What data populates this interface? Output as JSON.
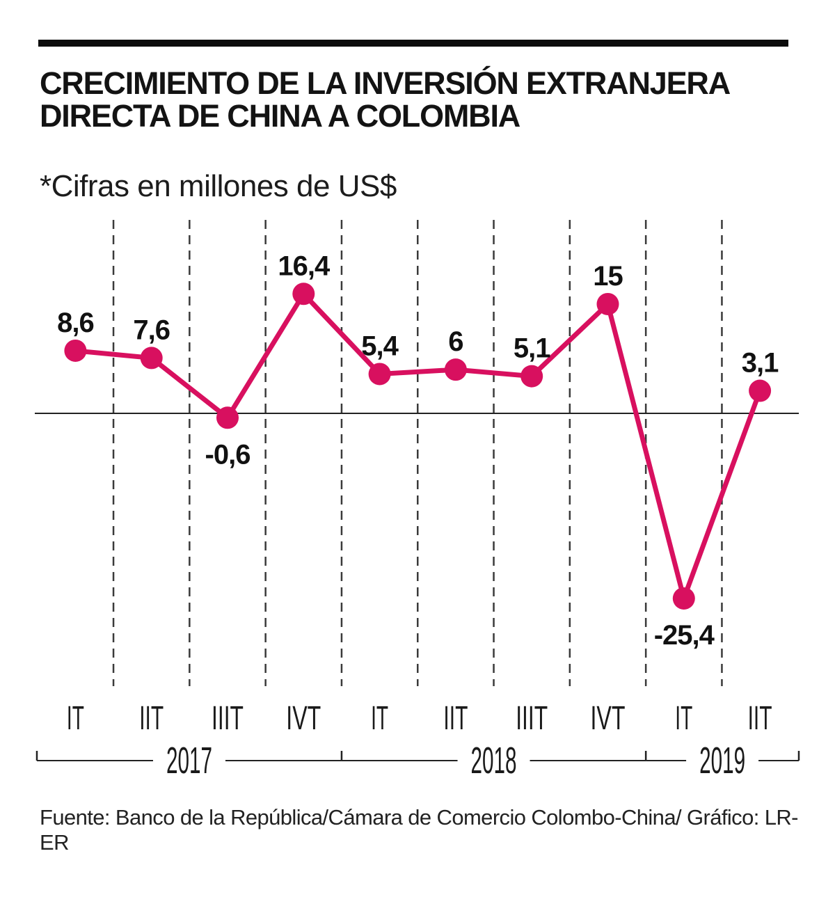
{
  "header": {
    "title_line1": "CRECIMIENTO DE LA INVERSIÓN EXTRANJERA",
    "title_line2": "DIRECTA DE CHINA A COLOMBIA",
    "subtitle": "*Cifras en millones de US$"
  },
  "chart_data": {
    "type": "line",
    "title": "Crecimiento de la inversión extranjera directa de China a Colombia",
    "unit": "millones de US$",
    "categories": [
      "IT",
      "IIT",
      "IIIT",
      "IVT",
      "IT",
      "IIT",
      "IIIT",
      "IVT",
      "IT",
      "IIT"
    ],
    "values": [
      8.6,
      7.6,
      -0.6,
      16.4,
      5.4,
      6,
      5.1,
      15,
      -25.4,
      3.1
    ],
    "value_labels": [
      "8,6",
      "7,6",
      "-0,6",
      "16,4",
      "5,4",
      "6",
      "5,1",
      "15",
      "-25,4",
      "3,1"
    ],
    "year_groups": [
      {
        "label": "2017",
        "span": 4
      },
      {
        "label": "2018",
        "span": 4
      },
      {
        "label": "2019",
        "span": 2
      }
    ],
    "ylim": [
      -30,
      22
    ],
    "baseline": 0,
    "grid": "vertical-dashed",
    "legend": "none",
    "line_color": "#d8105f",
    "marker_color": "#d8105f",
    "grid_color": "#3a3a3a",
    "axis_color": "#222222"
  },
  "footer": {
    "source": "Fuente: Banco de la República/Cámara de Comercio Colombo-China/ Gráfico: LR-ER"
  }
}
